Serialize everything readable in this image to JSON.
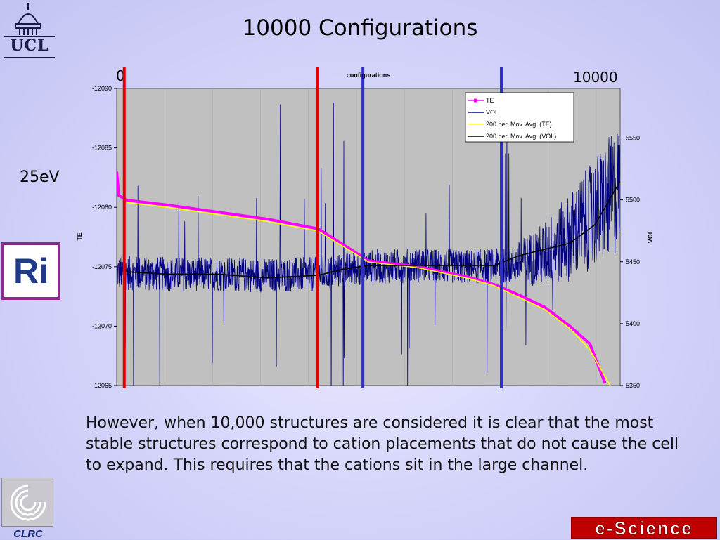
{
  "slide": {
    "title": "10000 Configurations",
    "label_energy": "25eV",
    "label_start": "0",
    "label_end": "10000",
    "body": "However, when 10,000 structures are considered it is clear that the most stable structures correspond to cation placements that do not cause the cell to expand. This requires that the cations sit in the large channel."
  },
  "logos": {
    "ucl": "UCL",
    "ri": "Ri",
    "clrc": "CLRC",
    "escience": "e-Science"
  },
  "colors": {
    "te": "#ff00ff",
    "vol": "#000080",
    "te_avg": "#ffff00",
    "vol_avg": "#000000",
    "red_marker": "#e00000",
    "blue_marker": "#3030c0",
    "plot_bg": "#c0c0c0"
  },
  "chart_data": {
    "type": "line",
    "title": "configurations",
    "xlabel": "",
    "ylabel": "TE",
    "y2label": "VOL",
    "x_range": [
      0,
      10000
    ],
    "y_left": {
      "ticks": [
        -12090,
        -12085,
        -12080,
        -12075,
        -12070,
        -12065
      ]
    },
    "y_right": {
      "ticks": [
        5550,
        5500,
        5450,
        5400,
        5350
      ],
      "ylim": [
        5350,
        5590
      ]
    },
    "grid": true,
    "legend_position": "top-right",
    "series": [
      {
        "name": "TE",
        "axis": "left",
        "x": [
          0,
          40,
          200,
          1000,
          2000,
          3000,
          4000,
          5000,
          6000,
          7000,
          7500,
          8000,
          8500,
          9000,
          9400,
          9700
        ],
        "y": [
          -12083,
          -12081,
          -12080.6,
          -12080.2,
          -12079.6,
          -12079.0,
          -12078.2,
          -12075.5,
          -12075.0,
          -12074.1,
          -12073.5,
          -12072.6,
          -12071.6,
          -12070.0,
          -12068.5,
          -12065.2
        ]
      },
      {
        "name": "VOL",
        "axis": "right",
        "style": "noisy",
        "x": [
          0,
          1000,
          2000,
          3000,
          4000,
          5000,
          6000,
          7000,
          7800,
          8500,
          9000,
          9500,
          10000
        ],
        "y": [
          5441,
          5440,
          5440,
          5439,
          5440,
          5446,
          5447,
          5446,
          5447,
          5456,
          5470,
          5490,
          5510
        ]
      },
      {
        "name": "200 per. Mov. Avg. (TE)",
        "axis": "left",
        "x": [
          200,
          1000,
          2000,
          3000,
          4000,
          5000,
          6000,
          7000,
          7500,
          8000,
          8500,
          9000,
          9400,
          9800
        ],
        "y": [
          -12080.4,
          -12080.0,
          -12079.4,
          -12078.8,
          -12078.0,
          -12075.4,
          -12074.9,
          -12074.0,
          -12073.4,
          -12072.4,
          -12071.4,
          -12069.8,
          -12068.0,
          -12065.0
        ]
      },
      {
        "name": "200 per. Mov. Avg. (VOL)",
        "axis": "right",
        "x": [
          200,
          1000,
          2000,
          3000,
          4000,
          4500,
          5000,
          6000,
          7000,
          7500,
          8000,
          8500,
          9000,
          9500,
          10000
        ],
        "y": [
          5442,
          5440,
          5440,
          5437,
          5439,
          5444,
          5447,
          5447,
          5447,
          5447,
          5455,
          5460,
          5465,
          5480,
          5515
        ]
      }
    ],
    "markers": [
      {
        "x": 150,
        "color": "red"
      },
      {
        "x": 3980,
        "color": "red"
      },
      {
        "x": 4890,
        "color": "blue"
      },
      {
        "x": 7640,
        "color": "blue"
      }
    ]
  }
}
